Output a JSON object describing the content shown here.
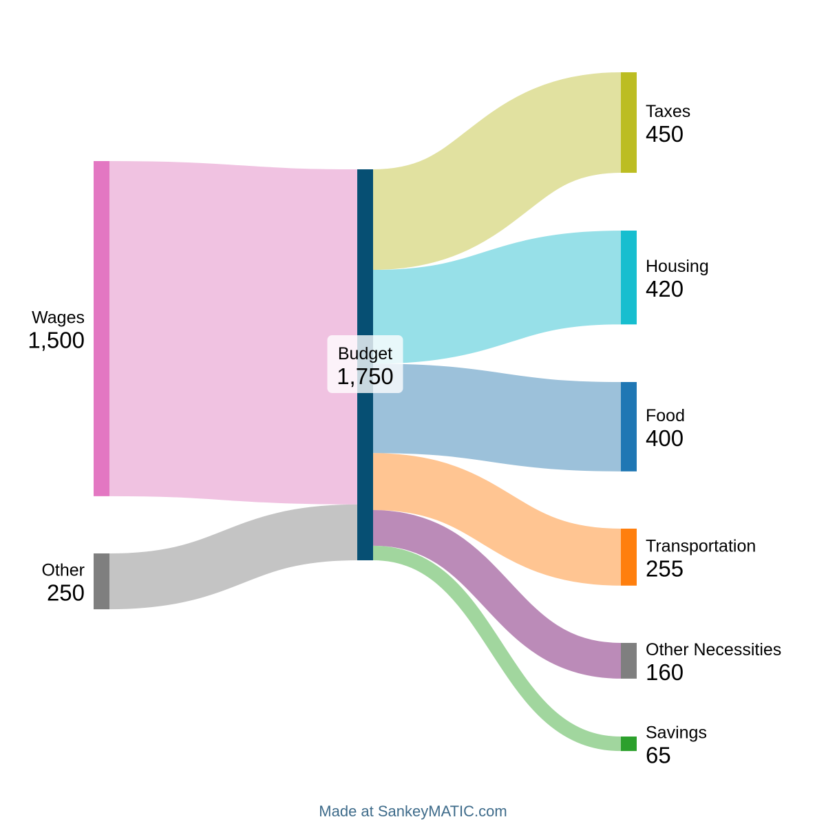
{
  "chart_data": {
    "type": "sankey",
    "nodes": [
      {
        "id": "wages",
        "name": "Wages",
        "value": 1500,
        "value_label": "1,500",
        "color": "#e377c2",
        "column": 0
      },
      {
        "id": "other_in",
        "name": "Other",
        "value": 250,
        "value_label": "250",
        "color": "#7f7f7f",
        "column": 0
      },
      {
        "id": "budget",
        "name": "Budget",
        "value": 1750,
        "value_label": "1,750",
        "color": "#064f73",
        "column": 1
      },
      {
        "id": "taxes",
        "name": "Taxes",
        "value": 450,
        "value_label": "450",
        "color": "#bcbd22",
        "column": 2
      },
      {
        "id": "housing",
        "name": "Housing",
        "value": 420,
        "value_label": "420",
        "color": "#17becf",
        "column": 2
      },
      {
        "id": "food",
        "name": "Food",
        "value": 400,
        "value_label": "400",
        "color": "#1f77b4",
        "column": 2
      },
      {
        "id": "transportation",
        "name": "Transportation",
        "value": 255,
        "value_label": "255",
        "color": "#ff7f0e",
        "column": 2
      },
      {
        "id": "other_necessities",
        "name": "Other Necessities",
        "value": 160,
        "value_label": "160",
        "color": "#7f7f7f",
        "column": 2
      },
      {
        "id": "savings",
        "name": "Savings",
        "value": 65,
        "value_label": "65",
        "color": "#2ca02c",
        "column": 2
      }
    ],
    "flows": [
      {
        "source": "wages",
        "target": "budget",
        "value": 1500,
        "color": "#f0c2e1"
      },
      {
        "source": "other_in",
        "target": "budget",
        "value": 250,
        "color": "#c4c4c4"
      },
      {
        "source": "budget",
        "target": "taxes",
        "value": 450,
        "color": "#e1e1a0"
      },
      {
        "source": "budget",
        "target": "housing",
        "value": 420,
        "color": "#97e0e8"
      },
      {
        "source": "budget",
        "target": "food",
        "value": 400,
        "color": "#9cc1da"
      },
      {
        "source": "budget",
        "target": "transportation",
        "value": 255,
        "color": "#ffc592"
      },
      {
        "source": "budget",
        "target": "other_necessities",
        "value": 160,
        "color": "#bb8bb8"
      },
      {
        "source": "budget",
        "target": "savings",
        "value": 65,
        "color": "#a1d69e"
      }
    ]
  },
  "credit": "Made at SankeyMATIC.com"
}
